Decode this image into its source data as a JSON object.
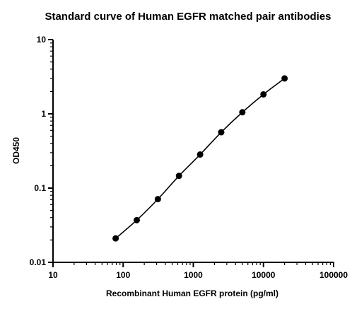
{
  "chart_data": {
    "type": "scatter",
    "title": "Standard curve of Human EGFR matched pair antibodies",
    "xlabel": "Recombinant Human EGFR protein (pg/ml)",
    "ylabel": "OD450",
    "x_scale": "log",
    "y_scale": "log",
    "xlim": [
      10,
      100000
    ],
    "ylim": [
      0.01,
      10
    ],
    "x_ticks": [
      "10",
      "100",
      "1000",
      "10000",
      "100000"
    ],
    "y_ticks": [
      "0.01",
      "0.1",
      "1",
      "10"
    ],
    "grid": false,
    "fit_curve": true,
    "series": [
      {
        "x": [
          78.125,
          156.25,
          312.5,
          625,
          1250,
          2500,
          5000,
          10000,
          20000
        ],
        "y": [
          0.021,
          0.037,
          0.071,
          0.146,
          0.283,
          0.565,
          1.05,
          1.83,
          3.0
        ]
      }
    ]
  }
}
